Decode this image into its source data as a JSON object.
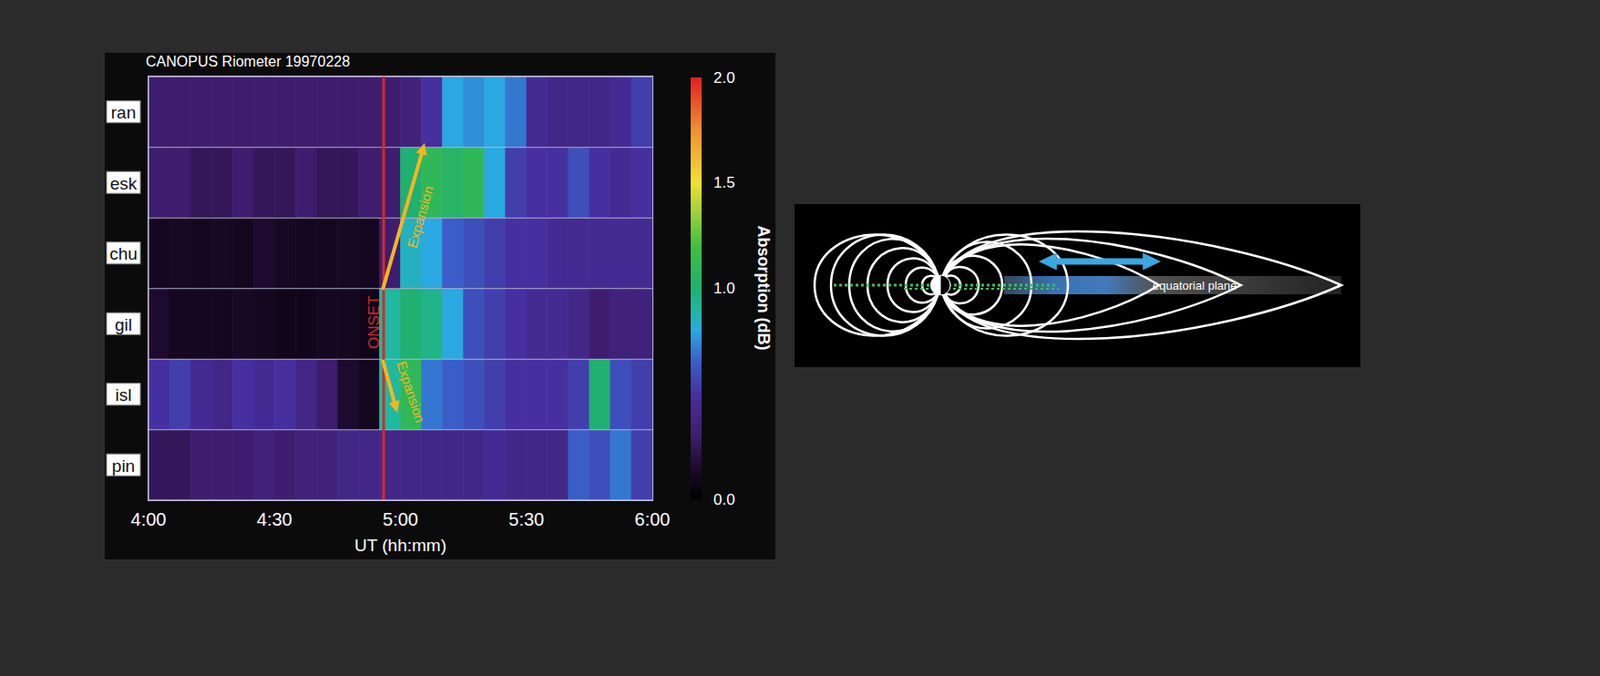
{
  "chart_data": {
    "type": "heatmap",
    "title": "CANOPUS Riometer 19970228",
    "x_label": "UT (hh:mm)",
    "categories": [
      "ran",
      "esk",
      "chu",
      "gil",
      "isl",
      "pin"
    ],
    "x_bins": [
      240,
      245,
      250,
      255,
      260,
      265,
      270,
      275,
      280,
      285,
      290,
      295,
      300,
      305,
      310,
      315,
      320,
      325,
      330,
      335,
      340,
      345,
      350,
      355,
      360
    ],
    "xlim": [
      240,
      360
    ],
    "xticks": [
      {
        "value": 240,
        "label": "4:00"
      },
      {
        "value": 270,
        "label": "4:30"
      },
      {
        "value": 300,
        "label": "5:00"
      },
      {
        "value": 330,
        "label": "5:30"
      },
      {
        "value": 360,
        "label": "6:00"
      }
    ],
    "values": [
      [
        0.3,
        0.3,
        0.3,
        0.3,
        0.3,
        0.3,
        0.3,
        0.3,
        0.3,
        0.3,
        0.3,
        0.3,
        0.35,
        0.5,
        0.8,
        0.75,
        0.8,
        0.7,
        0.45,
        0.4,
        0.4,
        0.4,
        0.45,
        0.55
      ],
      [
        0.3,
        0.3,
        0.25,
        0.25,
        0.3,
        0.25,
        0.25,
        0.3,
        0.25,
        0.25,
        0.3,
        0.3,
        1.0,
        1.1,
        1.05,
        1.1,
        0.8,
        0.55,
        0.5,
        0.5,
        0.6,
        0.5,
        0.45,
        0.5
      ],
      [
        0.1,
        0.12,
        0.1,
        0.12,
        0.1,
        0.15,
        0.12,
        0.1,
        0.1,
        0.12,
        0.1,
        0.3,
        0.85,
        0.8,
        0.65,
        0.6,
        0.55,
        0.5,
        0.5,
        0.45,
        0.45,
        0.45,
        0.45,
        0.45
      ],
      [
        0.15,
        0.1,
        0.1,
        0.1,
        0.12,
        0.1,
        0.08,
        0.08,
        0.1,
        0.1,
        0.08,
        0.9,
        1.0,
        0.95,
        0.8,
        0.6,
        0.55,
        0.5,
        0.45,
        0.45,
        0.4,
        0.3,
        0.35,
        0.35
      ],
      [
        0.5,
        0.55,
        0.45,
        0.4,
        0.5,
        0.45,
        0.5,
        0.4,
        0.3,
        0.15,
        0.1,
        0.9,
        1.1,
        0.7,
        0.65,
        0.6,
        0.55,
        0.5,
        0.5,
        0.5,
        0.55,
        1.0,
        0.6,
        0.55
      ],
      [
        0.25,
        0.25,
        0.3,
        0.3,
        0.3,
        0.35,
        0.3,
        0.35,
        0.35,
        0.4,
        0.4,
        0.4,
        0.4,
        0.4,
        0.4,
        0.4,
        0.45,
        0.4,
        0.4,
        0.4,
        0.65,
        0.6,
        0.7,
        0.55
      ]
    ],
    "colorbar": {
      "label": "Absorption (dB)",
      "range": [
        0,
        2
      ],
      "ticks": [
        {
          "value": 0,
          "label": "0.0"
        },
        {
          "value": 1,
          "label": "1.0"
        },
        {
          "value": 1.5,
          "label": "1.5"
        },
        {
          "value": 2,
          "label": "2.0"
        }
      ]
    },
    "annotations": [
      {
        "text": "ONSET",
        "x": 296
      },
      {
        "text": "Expansion"
      },
      {
        "text": "Expansion"
      }
    ]
  },
  "diagram": {
    "label": "equatorial plane"
  }
}
